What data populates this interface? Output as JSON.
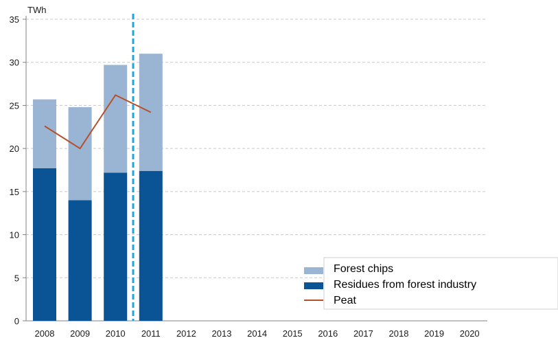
{
  "chart_data": {
    "type": "bar",
    "stacked": true,
    "unit_label": "TWh",
    "categories": [
      "2008",
      "2009",
      "2010",
      "2011",
      "2012",
      "2013",
      "2014",
      "2015",
      "2016",
      "2017",
      "2018",
      "2019",
      "2020"
    ],
    "ylim": [
      0,
      35
    ],
    "yticks": [
      0,
      5,
      10,
      15,
      20,
      25,
      30,
      35
    ],
    "grid": true,
    "legend_position": "bottom-right",
    "series": [
      {
        "name": "Residues from forest industry",
        "kind": "bar",
        "color": "#0a5496",
        "values": [
          17.7,
          14.0,
          17.2,
          17.4,
          null,
          null,
          null,
          null,
          null,
          null,
          null,
          null,
          null
        ]
      },
      {
        "name": "Forest chips",
        "kind": "bar",
        "color": "#9ab5d4",
        "values": [
          8.0,
          10.8,
          12.5,
          13.6,
          null,
          null,
          null,
          null,
          null,
          null,
          null,
          null,
          null
        ]
      },
      {
        "name": "Peat",
        "kind": "line",
        "color": "#b5502a",
        "values": [
          22.6,
          20.0,
          26.2,
          24.2,
          null,
          null,
          null,
          null,
          null,
          null,
          null,
          null,
          null
        ]
      }
    ],
    "legend": [
      "Forest chips",
      "Residues from forest industry",
      "Peat"
    ],
    "divider": {
      "between": [
        "2010",
        "2011"
      ],
      "color": "#1fa4dc",
      "style": "dashed"
    }
  }
}
